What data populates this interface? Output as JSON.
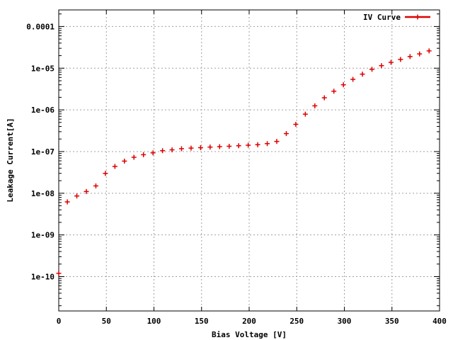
{
  "chart_data": {
    "type": "scatter",
    "xlabel": "Bias Voltage [V]",
    "ylabel": "Leakage Current[A]",
    "xlim": [
      0,
      400
    ],
    "ylim": [
      1.5e-11,
      0.00025
    ],
    "yscale": "log",
    "grid": true,
    "legend_position": "top-right",
    "x_ticks": [
      0,
      50,
      100,
      150,
      200,
      250,
      300,
      350,
      400
    ],
    "y_ticks": [
      {
        "value": 1e-10,
        "label": "1e-10"
      },
      {
        "value": 1e-09,
        "label": "1e-09"
      },
      {
        "value": 1e-08,
        "label": "1e-08"
      },
      {
        "value": 1e-07,
        "label": "1e-07"
      },
      {
        "value": 1e-06,
        "label": "1e-06"
      },
      {
        "value": 1e-05,
        "label": "1e-05"
      },
      {
        "value": 0.0001,
        "label": "0.0001"
      }
    ],
    "series": [
      {
        "name": "IV Curve",
        "color": "#dd0000",
        "marker": "plus",
        "x": [
          0,
          9,
          19,
          29,
          39,
          49,
          59,
          69,
          79,
          89,
          99,
          109,
          119,
          129,
          139,
          149,
          159,
          169,
          179,
          189,
          199,
          209,
          219,
          229,
          239,
          249,
          259,
          269,
          279,
          289,
          299,
          309,
          319,
          329,
          339,
          349,
          359,
          369,
          379,
          389
        ],
        "y": [
          1.2e-10,
          6.2e-09,
          8.6e-09,
          1.1e-08,
          1.5e-08,
          3e-08,
          4.4e-08,
          5.9e-08,
          7.3e-08,
          8.4e-08,
          9.3e-08,
          1.05e-07,
          1.1e-07,
          1.17e-07,
          1.21e-07,
          1.24e-07,
          1.28e-07,
          1.31e-07,
          1.34e-07,
          1.38e-07,
          1.42e-07,
          1.46e-07,
          1.55e-07,
          1.75e-07,
          2.7e-07,
          4.5e-07,
          7.9e-07,
          1.25e-06,
          1.95e-06,
          2.8e-06,
          4e-06,
          5.4e-06,
          7.2e-06,
          9.4e-06,
          1.15e-05,
          1.38e-05,
          1.62e-05,
          1.9e-05,
          2.2e-05,
          2.6e-05
        ]
      }
    ]
  }
}
